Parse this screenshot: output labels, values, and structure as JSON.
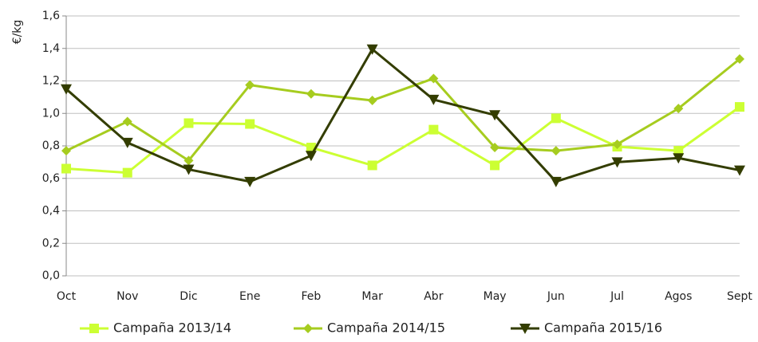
{
  "chart_data": {
    "type": "line",
    "y_label": "€/kg",
    "categories": [
      "Oct",
      "Nov",
      "Dic",
      "Ene",
      "Feb",
      "Mar",
      "Abr",
      "May",
      "Jun",
      "Jul",
      "Agos",
      "Sept"
    ],
    "series": [
      {
        "name": "Campaña 2013/14",
        "color": "#ccff33",
        "marker": "square",
        "values": [
          0.66,
          0.635,
          0.94,
          0.935,
          0.79,
          0.68,
          0.9,
          0.68,
          0.97,
          0.795,
          0.77,
          1.04
        ]
      },
      {
        "name": "Campaña 2014/15",
        "color": "#a6cc1f",
        "marker": "diamond",
        "values": [
          0.77,
          0.95,
          0.71,
          1.175,
          1.12,
          1.08,
          1.215,
          0.79,
          0.77,
          0.81,
          1.03,
          1.335
        ]
      },
      {
        "name": "Campaña 2015/16",
        "color": "#333d00",
        "marker": "triangle-down",
        "values": [
          1.15,
          0.82,
          0.655,
          0.58,
          0.74,
          1.395,
          1.085,
          0.99,
          0.58,
          0.7,
          0.725,
          0.65
        ]
      }
    ],
    "ylim": [
      0,
      1.6
    ],
    "yticks": [
      {
        "value": 0,
        "label": "0,0"
      },
      {
        "value": 0.2,
        "label": "0,2"
      },
      {
        "value": 0.4,
        "label": "0,4"
      },
      {
        "value": 0.6,
        "label": "0,6"
      },
      {
        "value": 0.8,
        "label": "0,8"
      },
      {
        "value": 1.0,
        "label": "1,0"
      },
      {
        "value": 1.2,
        "label": "1,2"
      },
      {
        "value": 1.4,
        "label": "1,4"
      },
      {
        "value": 1.6,
        "label": "1,6"
      }
    ],
    "grid": true,
    "legend": "bottom"
  }
}
